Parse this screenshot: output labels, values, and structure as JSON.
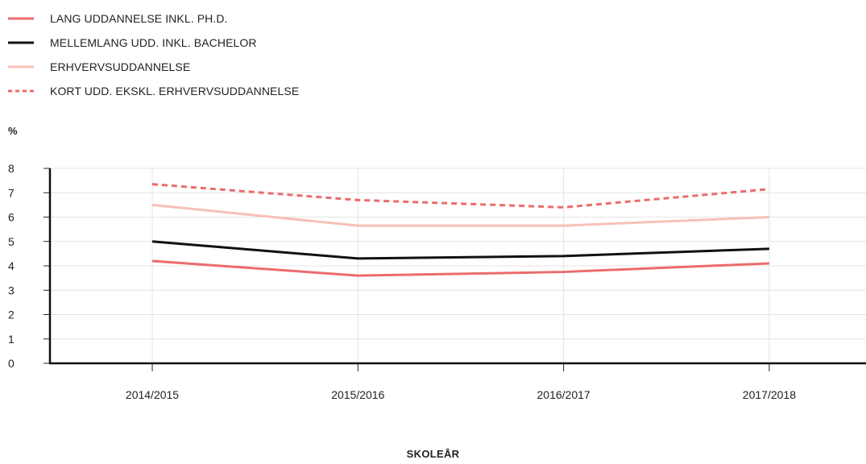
{
  "chart_data": {
    "type": "line",
    "title": "",
    "ylabel": "%",
    "xlabel": "SKOLEÅR",
    "categories": [
      "2014/2015",
      "2015/2016",
      "2016/2017",
      "2017/2018"
    ],
    "ylim": [
      0,
      8
    ],
    "yticks": [
      "0",
      "1",
      "2",
      "3",
      "4",
      "5",
      "6",
      "7",
      "8"
    ],
    "grid": true,
    "legend_position": "top-left",
    "series": [
      {
        "name": "LANG UDDANNELSE INKL. PH.D.",
        "values": [
          4.2,
          3.6,
          3.75,
          4.1
        ],
        "color": "#ec6b6b",
        "dash": "solid"
      },
      {
        "name": "MELLEMLANG UDD. INKL. BACHELOR",
        "values": [
          5.0,
          4.3,
          4.4,
          4.7
        ],
        "color": "#111111",
        "dash": "solid"
      },
      {
        "name": "ERHVERVSUDDANNELSE",
        "values": [
          6.5,
          5.65,
          5.65,
          6.0
        ],
        "color": "#f5c1b9",
        "dash": "solid"
      },
      {
        "name": "KORT UDD. EKSKL. ERHVERVSUDDANNELSE",
        "values": [
          7.35,
          6.7,
          6.4,
          7.15
        ],
        "color": "#ec6b6b",
        "dash": "dashed"
      }
    ]
  }
}
